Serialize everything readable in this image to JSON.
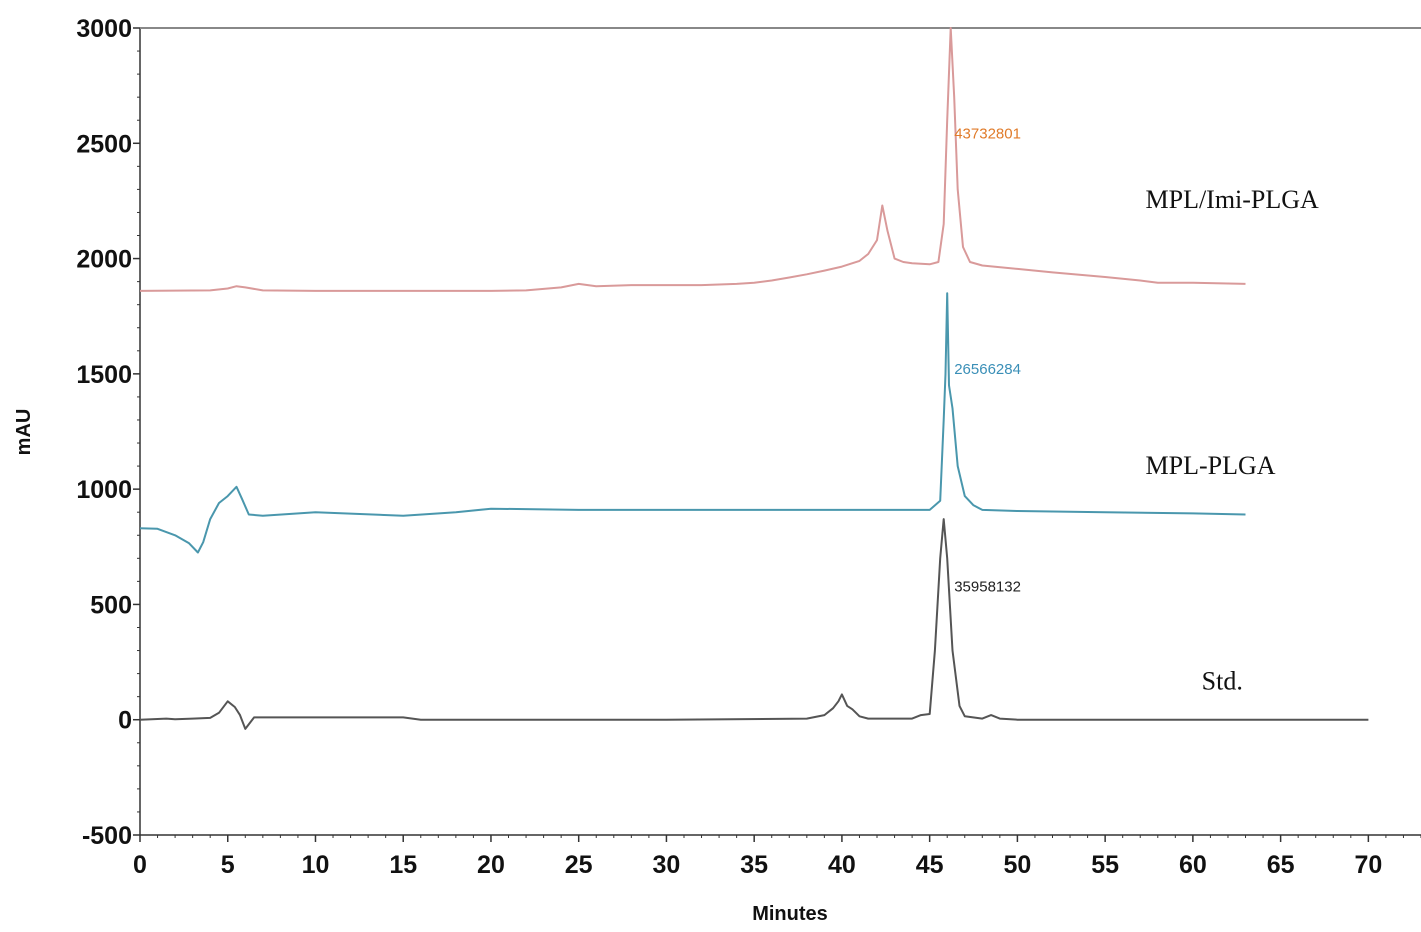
{
  "chart_data": {
    "type": "line",
    "title": "",
    "xlabel": "Minutes",
    "ylabel": "mAU",
    "xlim": [
      0,
      73
    ],
    "ylim": [
      -500,
      3000
    ],
    "x_ticks": [
      0,
      5,
      10,
      15,
      20,
      25,
      30,
      35,
      40,
      45,
      50,
      55,
      60,
      65,
      70
    ],
    "y_ticks": [
      -500,
      0,
      500,
      1000,
      1500,
      2000,
      2500,
      3000
    ],
    "grid": false,
    "series": [
      {
        "name": "MPL/Imi-PLGA",
        "color": "#d99a9a",
        "x": [
          0,
          4,
          5,
          5.5,
          6,
          7,
          10,
          15,
          20,
          22,
          24,
          25,
          26,
          28,
          30,
          32,
          34,
          35,
          36,
          37,
          38,
          39,
          40,
          41,
          41.5,
          42,
          42.3,
          42.6,
          43,
          43.5,
          44,
          45,
          45.5,
          45.8,
          46,
          46.2,
          46.4,
          46.6,
          46.9,
          47.3,
          48,
          50,
          52,
          55,
          57,
          58,
          60,
          63
        ],
        "y": [
          1860,
          1862,
          1870,
          1880,
          1875,
          1862,
          1860,
          1860,
          1860,
          1862,
          1875,
          1890,
          1880,
          1885,
          1885,
          1885,
          1890,
          1895,
          1905,
          1918,
          1932,
          1948,
          1965,
          1990,
          2020,
          2080,
          2230,
          2120,
          2000,
          1985,
          1980,
          1975,
          1985,
          2150,
          2600,
          3000,
          2700,
          2300,
          2050,
          1985,
          1970,
          1955,
          1940,
          1920,
          1905,
          1895,
          1895,
          1890
        ]
      },
      {
        "name": "MPL-PLGA",
        "color": "#4a97ad",
        "x": [
          0,
          1,
          2,
          2.8,
          3.3,
          3.6,
          4,
          4.5,
          5,
          5.5,
          5.8,
          6.2,
          7,
          10,
          15,
          18,
          20,
          25,
          30,
          35,
          40,
          45,
          45.6,
          45.8,
          45.9,
          46,
          46.1,
          46.3,
          46.6,
          47,
          47.5,
          48,
          50,
          55,
          60,
          63
        ],
        "y": [
          830,
          828,
          800,
          765,
          725,
          770,
          870,
          940,
          970,
          1010,
          960,
          890,
          885,
          900,
          885,
          900,
          915,
          910,
          910,
          910,
          910,
          910,
          950,
          1300,
          1500,
          1850,
          1450,
          1350,
          1100,
          970,
          930,
          910,
          905,
          900,
          895,
          890
        ]
      },
      {
        "name": "Std.",
        "color": "#555555",
        "x": [
          0,
          1.5,
          2,
          3,
          4,
          4.5,
          5,
          5.4,
          5.7,
          6,
          6.5,
          10,
          15,
          16,
          20,
          30,
          38,
          39,
          39.5,
          39.8,
          40,
          40.3,
          40.6,
          41,
          41.5,
          44,
          44.5,
          45,
          45.3,
          45.6,
          45.8,
          46,
          46.3,
          46.7,
          47,
          48,
          48.5,
          49,
          50,
          60,
          70
        ],
        "y": [
          0,
          5,
          2,
          5,
          8,
          30,
          80,
          55,
          20,
          -40,
          10,
          10,
          10,
          0,
          0,
          0,
          5,
          20,
          50,
          80,
          110,
          60,
          45,
          15,
          5,
          5,
          20,
          25,
          300,
          700,
          870,
          700,
          300,
          60,
          15,
          5,
          20,
          5,
          0,
          0,
          0
        ]
      }
    ],
    "annotations": [
      {
        "text": "43732801",
        "x": 46.4,
        "y": 2520,
        "color": "#e07b2a"
      },
      {
        "text": "26566284",
        "x": 46.4,
        "y": 1500,
        "color": "#3a8fb7"
      },
      {
        "text": "35958132",
        "x": 46.4,
        "y": 555,
        "color": "#222222"
      }
    ],
    "series_labels": [
      {
        "text": "MPL/Imi-PLGA",
        "x": 57.3,
        "y": 2220
      },
      {
        "text": "MPL-PLGA",
        "x": 57.3,
        "y": 1065
      },
      {
        "text": "Std.",
        "x": 60.5,
        "y": 130
      }
    ]
  }
}
